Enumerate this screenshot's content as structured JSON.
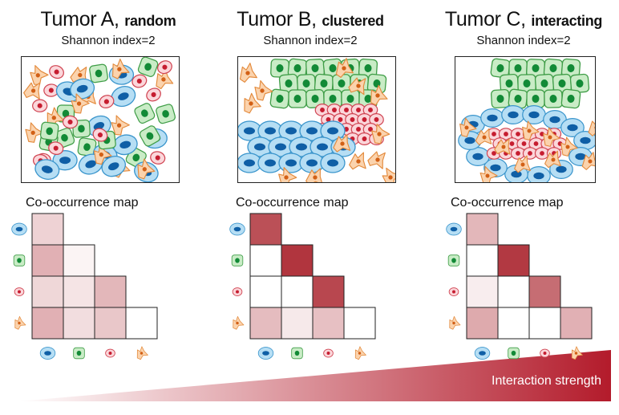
{
  "panels": [
    {
      "id": "A",
      "title": "Tumor A, ",
      "title_sub": "random",
      "shannon": "Shannon index=2",
      "cooc_label": "Co-occurrence map",
      "matrix": [
        [
          0.2
        ],
        [
          0.35,
          0.05
        ],
        [
          0.18,
          0.12,
          0.32
        ],
        [
          0.35,
          0.15,
          0.25,
          0.0
        ]
      ],
      "layout": "random"
    },
    {
      "id": "B",
      "title": "Tumor B, ",
      "title_sub": "clustered",
      "shannon": "Shannon index=2",
      "cooc_label": "Co-occurrence map",
      "matrix": [
        [
          0.78
        ],
        [
          0.0,
          0.9
        ],
        [
          0.0,
          0.0,
          0.82
        ],
        [
          0.3,
          0.1,
          0.28,
          0.0
        ]
      ],
      "layout": "clustered"
    },
    {
      "id": "C",
      "title": "Tumor C, ",
      "title_sub": "interacting",
      "shannon": "Shannon index=2",
      "cooc_label": "Co-occurrence map",
      "matrix": [
        [
          0.32
        ],
        [
          0.0,
          0.88
        ],
        [
          0.08,
          0.0,
          0.65
        ],
        [
          0.38,
          0.0,
          0.0,
          0.35
        ]
      ],
      "layout": "interacting"
    }
  ],
  "cell_types": [
    {
      "name": "blue-cell",
      "fill": "#b6def4",
      "stroke": "#3a95cc",
      "nucleus": "#0f5fa6"
    },
    {
      "name": "green-cell",
      "fill": "#c9ecc6",
      "stroke": "#3f9d47",
      "nucleus": "#128a36"
    },
    {
      "name": "red-cell",
      "fill": "#fbd6da",
      "stroke": "#d04452",
      "nucleus": "#c61d30"
    },
    {
      "name": "orange-cell",
      "fill": "#fbd3ad",
      "stroke": "#e38a3c",
      "nucleus": "#d26016"
    }
  ],
  "gradient": {
    "label": "Interaction strength",
    "color_start": "#ffffff",
    "color_end": "#b31b2b"
  }
}
